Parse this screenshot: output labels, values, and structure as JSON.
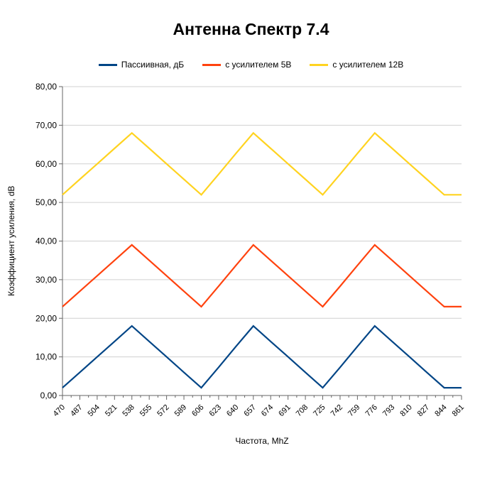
{
  "chart_data": {
    "type": "line",
    "title": "Антенна Спектр 7.4",
    "xlabel": "Частота, MhZ",
    "ylabel": "Коэффициент усиления, dB",
    "ylim": [
      0,
      80
    ],
    "y_tick_step": 10,
    "y_tick_labels": [
      "0,00",
      "10,00",
      "20,00",
      "30,00",
      "40,00",
      "50,00",
      "60,00",
      "70,00",
      "80,00"
    ],
    "decimal_separator": ",",
    "grid": "horizontal",
    "legend_position": "top",
    "categories": [
      470,
      487,
      504,
      521,
      538,
      555,
      572,
      589,
      606,
      623,
      640,
      657,
      674,
      691,
      708,
      725,
      742,
      759,
      776,
      793,
      810,
      827,
      844,
      861
    ],
    "series": [
      {
        "name": "Пассиивная, дБ",
        "color": "#004586",
        "values": [
          2,
          6,
          10,
          14,
          18,
          14,
          10,
          6,
          2,
          7.3,
          12.7,
          18,
          14,
          10,
          6,
          2,
          7.3,
          12.7,
          18,
          14,
          10,
          6,
          2,
          2
        ]
      },
      {
        "name": "с усилителем 5В",
        "color": "#FF420E",
        "values": [
          23,
          27,
          31,
          35,
          39,
          35,
          31,
          27,
          23,
          28.3,
          33.7,
          39,
          35,
          31,
          27,
          23,
          28.3,
          33.7,
          39,
          35,
          31,
          27,
          23,
          23
        ]
      },
      {
        "name": "с усилителем 12В",
        "color": "#FFD320",
        "values": [
          52,
          56,
          60,
          64,
          68,
          64,
          60,
          56,
          52,
          57.3,
          62.7,
          68,
          64,
          60,
          56,
          52,
          57.3,
          62.7,
          68,
          64,
          60,
          56,
          52,
          52
        ]
      }
    ],
    "axis_color": "#666666",
    "grid_color": "#d0d0d0",
    "text_color": "#000000"
  }
}
